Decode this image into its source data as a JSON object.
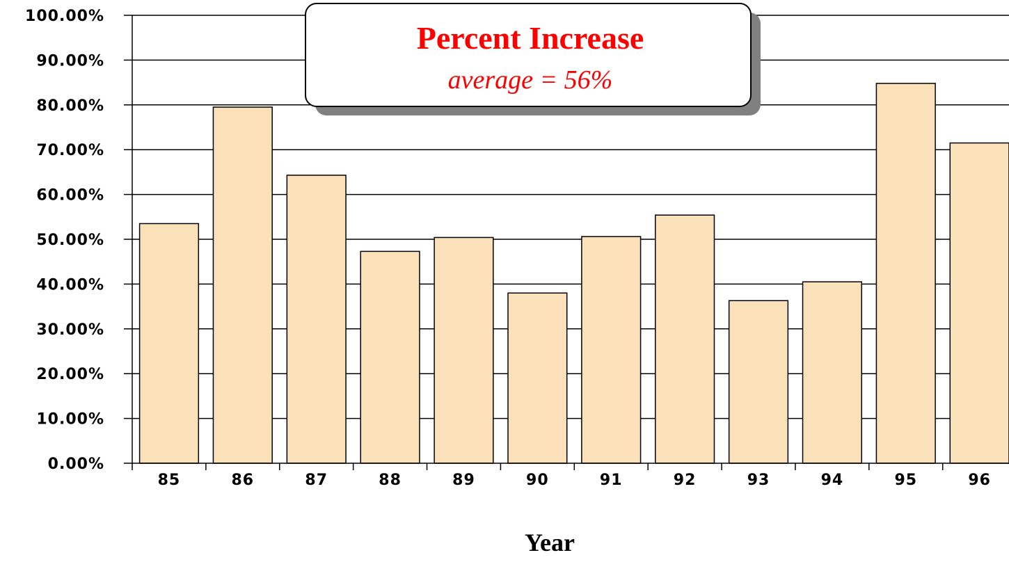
{
  "chart_data": {
    "type": "bar",
    "title": "Percent Increase",
    "subtitle": "average = 56%",
    "xlabel": "Year",
    "ylabel": "",
    "categories": [
      "85",
      "86",
      "87",
      "88",
      "89",
      "90",
      "91",
      "92",
      "93",
      "94",
      "95",
      "96"
    ],
    "values": [
      53.5,
      79.5,
      64.3,
      47.3,
      50.4,
      38.0,
      50.6,
      55.4,
      36.3,
      40.5,
      84.8,
      71.5
    ],
    "ylim": [
      0,
      100
    ],
    "y_ticks": [
      "0.00%",
      "10.00%",
      "20.00%",
      "30.00%",
      "40.00%",
      "50.00%",
      "60.00%",
      "70.00%",
      "80.00%",
      "90.00%",
      "100.00%"
    ],
    "grid": true,
    "legend": "none"
  },
  "colors": {
    "bar_fill": "#fae1b9",
    "bar_stroke": "#000000",
    "title": "#ff0000",
    "subtitle": "#ff0000",
    "grid": "#000000"
  }
}
